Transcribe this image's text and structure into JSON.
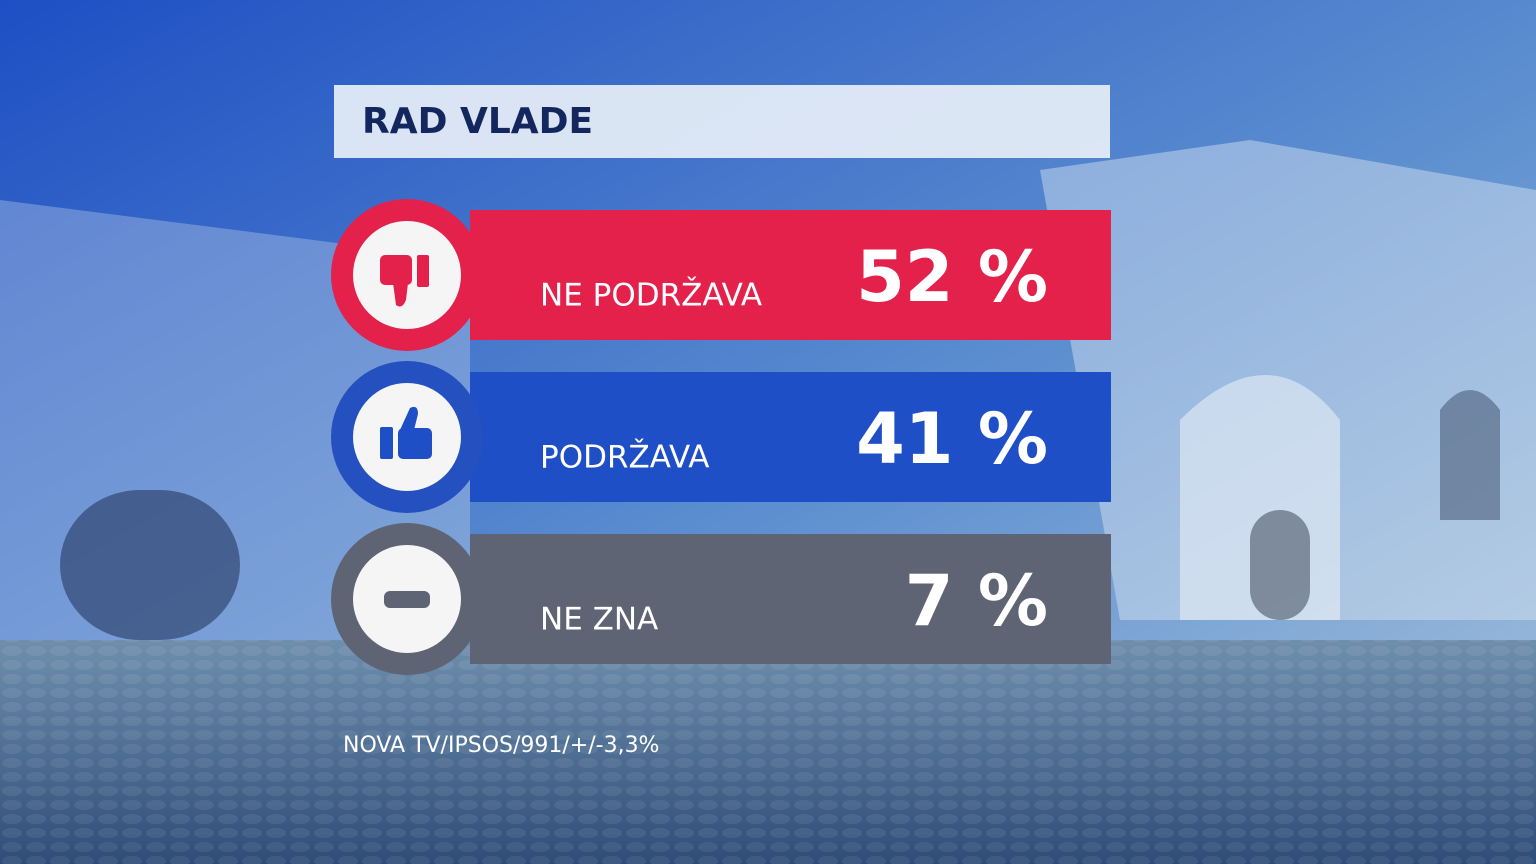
{
  "title": "RAD VLADE",
  "rows": [
    {
      "label": "NE PODRŽAVA",
      "value": "52 %"
    },
    {
      "label": "PODRŽAVA",
      "value": "41 %"
    },
    {
      "label": "NE ZNA",
      "value": "7 %"
    }
  ],
  "source": "NOVA TV/IPSOS/991/+/-3,3%"
}
